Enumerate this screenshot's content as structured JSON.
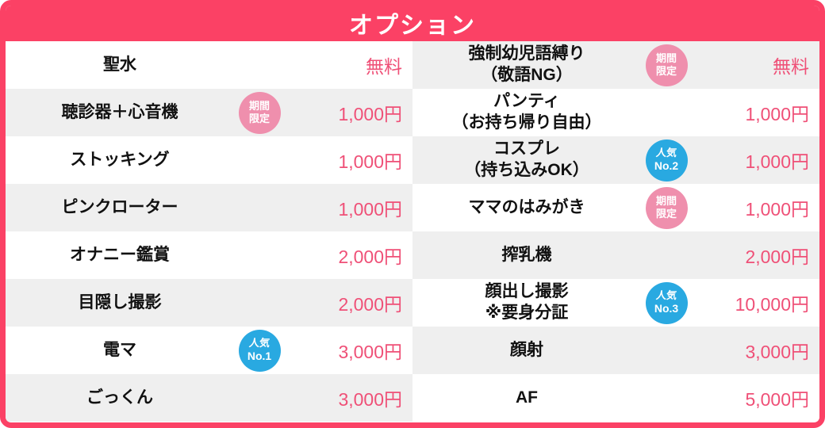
{
  "header": {
    "title": "オプション"
  },
  "colors": {
    "accent": "#fb4165",
    "price": "#ef5077",
    "row_alt": "#efefef",
    "badge_limited": "#ef8fad",
    "badge_popular": "#29a9e1"
  },
  "badges": {
    "limited_lines": [
      "期間",
      "限定"
    ],
    "popular_label": "人気"
  },
  "columns": [
    {
      "items": [
        {
          "label": "聖水",
          "price": "無料"
        },
        {
          "label": "聴診器＋心音機",
          "badge": "limited",
          "price": "1,000円"
        },
        {
          "label": "ストッキング",
          "price": "1,000円"
        },
        {
          "label": "ピンクローター",
          "price": "1,000円"
        },
        {
          "label": "オナニー鑑賞",
          "price": "2,000円"
        },
        {
          "label": "目隠し撮影",
          "price": "2,000円"
        },
        {
          "label": "電マ",
          "badge": "popular",
          "badge_rank": "No.1",
          "price": "3,000円"
        },
        {
          "label": "ごっくん",
          "price": "3,000円"
        }
      ]
    },
    {
      "items": [
        {
          "label": "強制幼児語縛り\n（敬語NG）",
          "badge": "limited",
          "price": "無料"
        },
        {
          "label": "パンティ\n（お持ち帰り自由）",
          "price": "1,000円"
        },
        {
          "label": "コスプレ\n（持ち込みOK）",
          "badge": "popular",
          "badge_rank": "No.2",
          "price": "1,000円"
        },
        {
          "label": "ママのはみがき",
          "badge": "limited",
          "price": "1,000円"
        },
        {
          "label": "搾乳機",
          "price": "2,000円"
        },
        {
          "label": "顔出し撮影\n※要身分証",
          "badge": "popular",
          "badge_rank": "No.3",
          "price": "10,000円"
        },
        {
          "label": "顔射",
          "price": "3,000円"
        },
        {
          "label": "AF",
          "price": "5,000円"
        }
      ]
    }
  ]
}
